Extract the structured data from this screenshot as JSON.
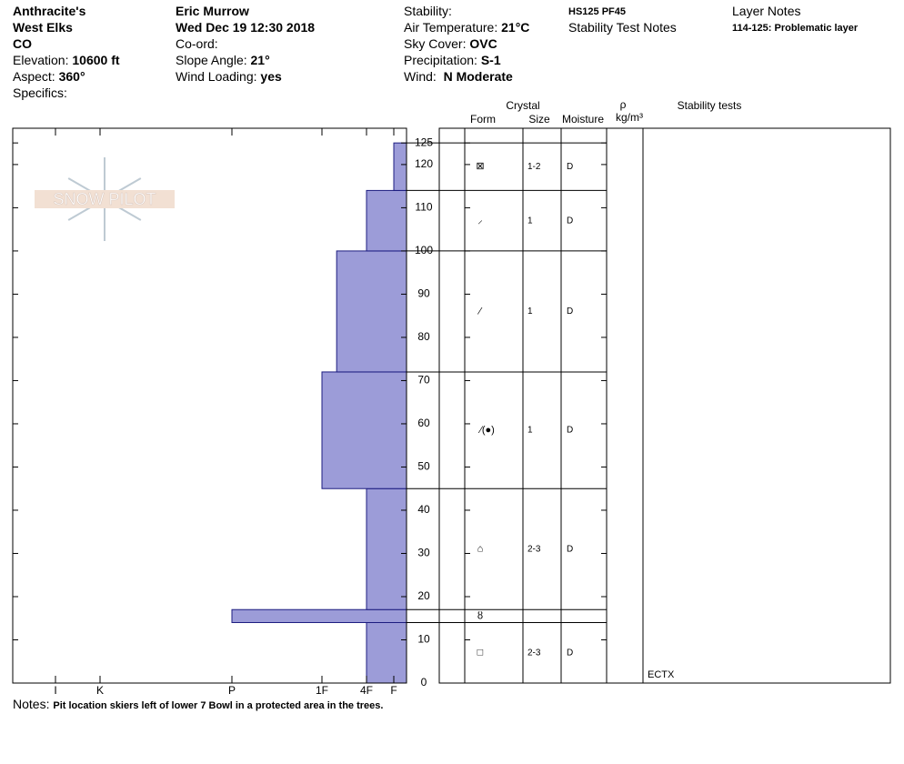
{
  "header": {
    "col1": [
      {
        "value": "Anthracite's"
      },
      {
        "value": "West Elks"
      },
      {
        "value": "CO"
      },
      {
        "label": "Elevation:",
        "value": "10600 ft"
      },
      {
        "label": "Aspect:",
        "value": "360°"
      },
      {
        "label": "Specifics:"
      }
    ],
    "col2": [
      {
        "value": "Eric Murrow"
      },
      {
        "value": "Wed Dec 19 12:30 2018"
      },
      {
        "label": "Co-ord:"
      },
      {
        "label": "Slope Angle:",
        "value": "21°"
      },
      {
        "label": "Wind Loading:",
        "value": "yes"
      }
    ],
    "col3": [
      {
        "label": "Stability:"
      },
      {
        "label": "Air Temperature:",
        "value": "21°C"
      },
      {
        "label": "Sky Cover:",
        "value": "OVC"
      },
      {
        "label": "Precipitation:",
        "value": "S-1"
      },
      {
        "label": "Wind: ",
        "value": "N Moderate"
      }
    ],
    "summary": "HS125 PF45",
    "stability_test_notes": "Stability Test Notes",
    "layer_notes_title": "Layer Notes",
    "layer_notes": "114-125: Problematic layer"
  },
  "logo": "SNOW PILOT",
  "chart_data": {
    "type": "snow-profile",
    "ylim": [
      0,
      128.4
    ],
    "yticks": [
      0,
      10,
      20,
      30,
      40,
      50,
      60,
      70,
      80,
      90,
      100,
      110,
      120,
      125
    ],
    "xlim": [
      0,
      7
    ],
    "xticks": [
      {
        "value": 6,
        "label": "I"
      },
      {
        "value": 5,
        "label": "K"
      },
      {
        "value": 4,
        "label": "P"
      },
      {
        "value": 3,
        "label": "1F"
      },
      {
        "value": 2,
        "label": "4F"
      },
      {
        "value": 1,
        "label": "F"
      }
    ],
    "color": "#9c9cd8",
    "edge_color": "#1c1c80",
    "columns": {
      "crystal": "Crystal",
      "form": "Form",
      "size": "Size",
      "moisture": "Moisture",
      "density_symbol": "ρ",
      "density_unit": "kg/m³",
      "stability": "Stability tests"
    },
    "layers": [
      {
        "bottom": 0,
        "top": 14,
        "hardness": 2,
        "form": "□",
        "size": "2-3",
        "moisture": "D"
      },
      {
        "bottom": 14,
        "top": 17,
        "hardness": 4,
        "form": "ȣ",
        "size": null,
        "moisture": null
      },
      {
        "bottom": 17,
        "top": 45,
        "hardness": 2,
        "form": "⌂",
        "size": "2-3",
        "moisture": "D"
      },
      {
        "bottom": 45,
        "top": 72,
        "hardness": 3,
        "form": "⁄(●)",
        "size": "1",
        "moisture": "D"
      },
      {
        "bottom": 72,
        "top": 100,
        "hardness": 2.67,
        "form": "⁄",
        "size": "1",
        "moisture": "D"
      },
      {
        "bottom": 100,
        "top": 114,
        "hardness": 2,
        "form": "⸝",
        "size": "1",
        "moisture": "D"
      },
      {
        "bottom": 114,
        "top": 125,
        "hardness": 1,
        "form": "⊠",
        "size": "1-2",
        "moisture": "D"
      }
    ],
    "stability_tests": [
      {
        "height": 0,
        "label": "ECTX"
      }
    ]
  },
  "notes": {
    "label": "Notes:",
    "text": "Pit location skiers left of lower 7 Bowl in a protected area in the trees."
  }
}
